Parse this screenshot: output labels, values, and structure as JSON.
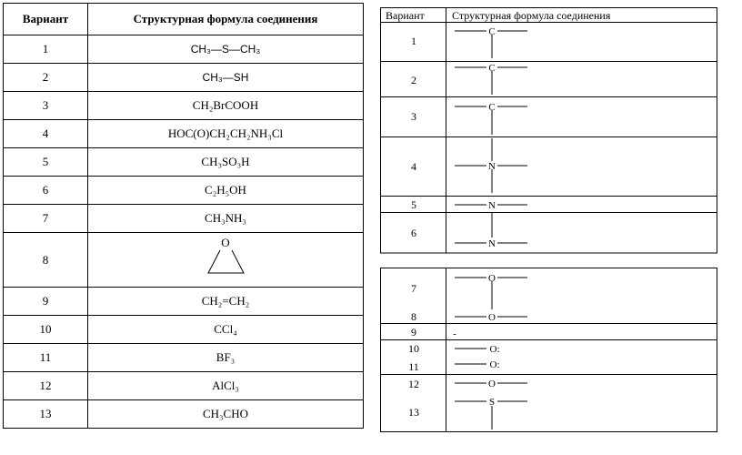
{
  "left_table": {
    "headers": [
      "Вариант",
      "Структурная формула соединения"
    ],
    "rows": [
      {
        "n": "1",
        "formula": "CH₃—S—CH₃"
      },
      {
        "n": "2",
        "formula": "CH₃—SH"
      },
      {
        "n": "3",
        "formula": "CH₂BrCOOH"
      },
      {
        "n": "4",
        "formula": "HOC(O)CH₂CH₂NH₃Cl"
      },
      {
        "n": "5",
        "formula": "CH₃SO₃H"
      },
      {
        "n": "6",
        "formula": "C₂H₅OH"
      },
      {
        "n": "7",
        "formula": "CH₃NH₃"
      },
      {
        "n": "8",
        "formula": "O",
        "ring_atom": "O"
      },
      {
        "n": "9",
        "formula": "CH₂=CH₂"
      },
      {
        "n": "10",
        "formula": "CCl₄"
      },
      {
        "n": "11",
        "formula": "BF₃"
      },
      {
        "n": "12",
        "formula": "AlCl₃"
      },
      {
        "n": "13",
        "formula": "CH₃CHO"
      }
    ]
  },
  "right_table": {
    "headers": [
      "Вариант",
      "Структурная формула соединения"
    ],
    "numbers": [
      "1",
      "2",
      "3",
      "4",
      "5",
      "6",
      "7",
      "8",
      "9",
      "10",
      "11",
      "12",
      "13"
    ],
    "atoms": [
      "C",
      "C",
      "C",
      "N",
      "N",
      "N",
      "O",
      "O",
      "-",
      "O:",
      "O:",
      "O",
      "S"
    ]
  }
}
